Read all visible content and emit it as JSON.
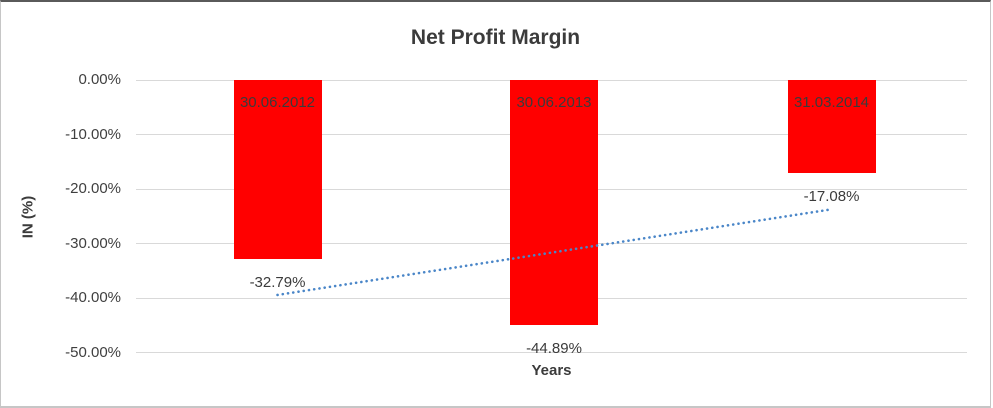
{
  "chart": {
    "title": "Net Profit Margin",
    "y_axis_title": "IN (%)",
    "x_axis_title": "Years"
  },
  "chart_data": {
    "type": "bar",
    "title": "Net Profit Margin",
    "xlabel": "Years",
    "ylabel": "IN (%)",
    "categories": [
      "30.06.2012",
      "30.06.2013",
      "31.03.2014"
    ],
    "values": [
      -32.79,
      -44.89,
      -17.08
    ],
    "value_labels": [
      "-32.79%",
      "-44.89%",
      "-17.08%"
    ],
    "y_ticks": [
      0,
      -10,
      -20,
      -30,
      -40,
      -50
    ],
    "y_tick_labels": [
      "0.00%",
      "-10.00%",
      "-20.00%",
      "-30.00%",
      "-40.00%",
      "-50.00%"
    ],
    "ylim": [
      -50,
      0
    ],
    "grid": true,
    "legend": false,
    "bar_color": "#ff0000",
    "label_color": "#3b3b3b",
    "gridline_color": "#d9d9d9",
    "trendline": {
      "type": "linear",
      "style": "dotted",
      "color": "#4a86c8"
    }
  }
}
